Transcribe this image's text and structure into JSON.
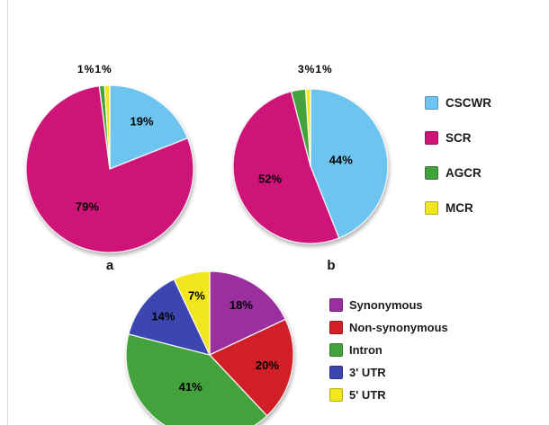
{
  "page": {
    "background": "#ffffff"
  },
  "chart_data": [
    {
      "type": "pie",
      "id": "a",
      "caption": "a",
      "outside_label": "1%1%",
      "start_angle": 0,
      "slices": [
        {
          "name": "CSCWR",
          "value": 19,
          "color": "#6DC5EF",
          "label_r": 0.68
        },
        {
          "name": "SCR",
          "value": 79,
          "color": "#CE1478",
          "label_r": 0.53
        },
        {
          "name": "AGCR",
          "value": 1,
          "color": "#44A23D"
        },
        {
          "name": "MCR",
          "value": 1,
          "color": "#F2E71F"
        }
      ]
    },
    {
      "type": "pie",
      "id": "b",
      "caption": "b",
      "outside_label": "3%1%",
      "start_angle": 0,
      "slices": [
        {
          "name": "CSCWR",
          "value": 44,
          "color": "#6DC5EF",
          "label_r": 0.4
        },
        {
          "name": "SCR",
          "value": 52,
          "color": "#CE1478",
          "label_r": 0.55
        },
        {
          "name": "AGCR",
          "value": 3,
          "color": "#44A23D"
        },
        {
          "name": "MCR",
          "value": 1,
          "color": "#F2E71F"
        }
      ]
    },
    {
      "type": "pie",
      "id": "c",
      "caption": "",
      "outside_label": "",
      "start_angle": 0,
      "slices": [
        {
          "name": "Synonymous",
          "value": 18,
          "color": "#9C2F9F",
          "label_r": 0.7
        },
        {
          "name": "Non-synonymous",
          "value": 20,
          "color": "#D01F27",
          "label_r": 0.7
        },
        {
          "name": "Intron",
          "value": 41,
          "color": "#44A23D",
          "label_r": 0.45
        },
        {
          "name": "3' UTR",
          "value": 14,
          "color": "#3C45B0",
          "label_r": 0.72
        },
        {
          "name": "5' UTR",
          "value": 7,
          "color": "#F2E71F",
          "label_r": 0.72
        }
      ]
    }
  ],
  "legend_top": {
    "items": [
      {
        "label": "CSCWR",
        "color": "#6DC5EF"
      },
      {
        "label": "SCR",
        "color": "#CE1478"
      },
      {
        "label": "AGCR",
        "color": "#44A23D"
      },
      {
        "label": "MCR",
        "color": "#F2E71F"
      }
    ]
  },
  "legend_bottom": {
    "items": [
      {
        "label": "Synonymous",
        "color": "#9C2F9F"
      },
      {
        "label": "Non-synonymous",
        "color": "#D01F27"
      },
      {
        "label": "Intron",
        "color": "#44A23D"
      },
      {
        "label": "3' UTR",
        "color": "#3C45B0"
      },
      {
        "label": "5' UTR",
        "color": "#F2E71F"
      }
    ]
  }
}
